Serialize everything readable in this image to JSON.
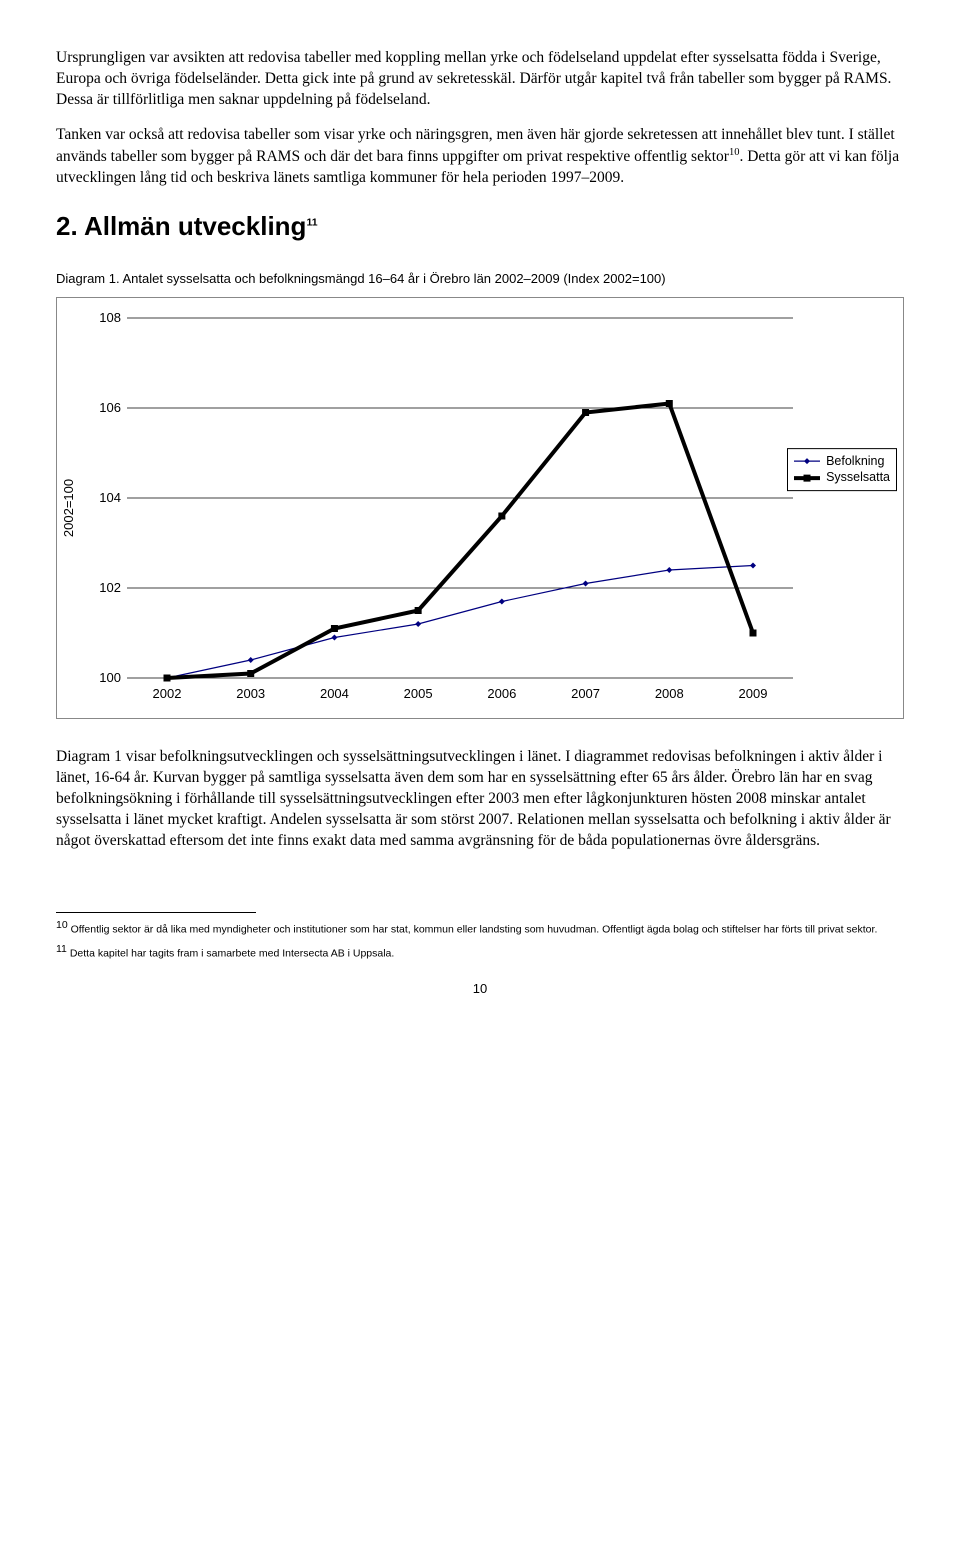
{
  "paragraphs": {
    "p1": "Ursprungligen var avsikten att redovisa tabeller med koppling mellan yrke och födelseland uppdelat efter sysselsatta födda i Sverige, Europa och övriga födelseländer. Detta gick inte på grund av sekretesskäl. Därför utgår kapitel två från tabeller som bygger på RAMS. Dessa är tillförlitliga men saknar uppdelning på födelseland.",
    "p2a": "Tanken var också att redovisa tabeller som visar yrke och näringsgren, men även här gjorde sekretessen att innehållet blev tunt. I stället används tabeller som bygger på RAMS och där det bara finns uppgifter om privat respektive offentlig sektor",
    "p2b": ". Detta gör att vi kan följa utvecklingen lång tid och beskriva länets samtliga kommuner för hela perioden 1997–2009.",
    "p3": "Diagram 1 visar befolkningsutvecklingen och sysselsättningsutvecklingen i länet. I diagrammet redovisas befolkningen i aktiv ålder i länet, 16-64 år. Kurvan bygger på samtliga sysselsatta även dem som har en sysselsättning efter 65 års ålder. Örebro län har en svag befolkningsökning i förhållande till sysselsättningsutvecklingen efter 2003 men efter lågkonjunkturen hösten 2008 minskar antalet sysselsatta i länet mycket kraftigt. Andelen sysselsatta är som störst 2007. Relationen mellan sysselsatta och befolkning i aktiv ålder är något överskattad eftersom det inte finns exakt data med samma avgränsning för de båda populationernas övre åldersgräns."
  },
  "heading": {
    "text": "2. Allmän utveckling",
    "sup": "11"
  },
  "diagram_caption": "Diagram 1. Antalet sysselsatta och befolkningsmängd 16–64 år i Örebro län 2002–2009 (Index 2002=100)",
  "chart": {
    "type": "line",
    "ylabel": "2002=100",
    "ylim": [
      100,
      108
    ],
    "ytick_step": 2,
    "yticks": [
      100,
      102,
      104,
      106,
      108
    ],
    "xcategories": [
      "2002",
      "2003",
      "2004",
      "2005",
      "2006",
      "2007",
      "2008",
      "2009"
    ],
    "grid_color": "#000000",
    "background_color": "#ffffff",
    "series": [
      {
        "name": "Befolkning",
        "color": "#000080",
        "line_width": 1.2,
        "marker": "diamond",
        "marker_size": 6,
        "values": [
          100.0,
          100.4,
          100.9,
          101.2,
          101.7,
          102.1,
          102.4,
          102.5
        ]
      },
      {
        "name": "Sysselsatta",
        "color": "#000000",
        "line_width": 4,
        "marker": "square",
        "marker_size": 7,
        "values": [
          100.0,
          100.1,
          101.1,
          101.5,
          103.6,
          105.9,
          106.1,
          101.0
        ]
      }
    ],
    "legend_position": "right"
  },
  "footnotes": {
    "f10_num": "10",
    "f10": " Offentlig sektor är då lika med myndigheter och institutioner som har stat, kommun eller landsting som huvudman. Offentligt ägda bolag och stiftelser har förts till privat sektor.",
    "f11_num": "11",
    "f11": " Detta kapitel har tagits fram i samarbete med Intersecta AB i Uppsala."
  },
  "sup10": "10",
  "pagenum": "10"
}
